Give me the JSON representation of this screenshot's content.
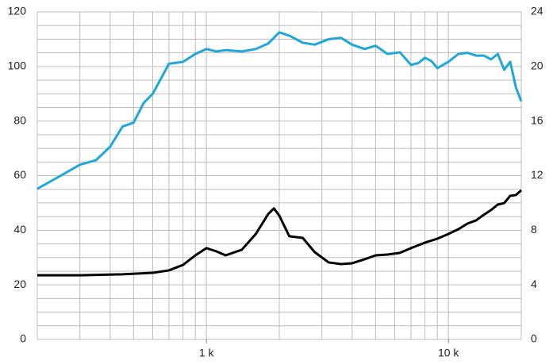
{
  "chart_data": {
    "type": "line",
    "xscale": "log",
    "xlim": [
      200,
      20000
    ],
    "xticks": [
      {
        "value": 1000,
        "label": "1 k"
      },
      {
        "value": 10000,
        "label": "10 k"
      }
    ],
    "x_grid": [
      200,
      300,
      400,
      500,
      600,
      700,
      800,
      900,
      1000,
      2000,
      3000,
      4000,
      5000,
      6000,
      7000,
      8000,
      9000,
      10000,
      20000
    ],
    "ylim": [
      0,
      120
    ],
    "yticks": [
      0,
      20,
      40,
      60,
      80,
      100,
      120
    ],
    "y_grid": [
      0,
      5,
      10,
      15,
      20,
      25,
      30,
      35,
      40,
      45,
      50,
      55,
      60,
      65,
      70,
      75,
      80,
      85,
      90,
      95,
      100,
      105,
      110,
      115,
      120
    ],
    "y2lim": [
      0,
      24
    ],
    "y2ticks": [
      0,
      4,
      8,
      12,
      16,
      20,
      24
    ],
    "grid": true,
    "series": [
      {
        "color": "#1ea7d8",
        "x": [
          200,
          250,
          300,
          350,
          400,
          450,
          500,
          550,
          600,
          700,
          800,
          900,
          1000,
          1100,
          1200,
          1400,
          1600,
          1800,
          2000,
          2200,
          2500,
          2800,
          3200,
          3600,
          4000,
          4500,
          5000,
          5600,
          6300,
          7000,
          7500,
          8000,
          8500,
          9000,
          10000,
          11000,
          12000,
          13000,
          14000,
          15000,
          16000,
          17000,
          18000,
          19000,
          20000
        ],
        "values": [
          55.2,
          60,
          64,
          65.7,
          70.6,
          78,
          79.4,
          86.6,
          90,
          101,
          101.7,
          104.6,
          106.4,
          105.5,
          106,
          105.5,
          106.4,
          108.4,
          112.5,
          111.3,
          108.7,
          108,
          110,
          110.5,
          108,
          106.4,
          107.6,
          104.6,
          105.2,
          100.6,
          101.2,
          103.2,
          102,
          99.4,
          101.7,
          104.6,
          105,
          104,
          104,
          102.6,
          104.6,
          98.8,
          101.7,
          92.4,
          87.2
        ]
      },
      {
        "color": "#000000",
        "axis": "y2",
        "x": [
          200,
          300,
          450,
          600,
          700,
          800,
          900,
          1000,
          1100,
          1200,
          1400,
          1600,
          1800,
          1900,
          2000,
          2200,
          2500,
          2800,
          3200,
          3600,
          4000,
          4500,
          5000,
          5600,
          6300,
          7000,
          8000,
          9000,
          10000,
          11000,
          12000,
          13000,
          14000,
          15000,
          16000,
          17000,
          18000,
          19000,
          20000
        ],
        "values": [
          4.7,
          4.7,
          4.77,
          4.88,
          5.06,
          5.46,
          6.16,
          6.69,
          6.45,
          6.16,
          6.57,
          7.73,
          9.19,
          9.6,
          9.07,
          7.56,
          7.44,
          6.4,
          5.64,
          5.52,
          5.58,
          5.87,
          6.16,
          6.22,
          6.34,
          6.69,
          7.09,
          7.38,
          7.73,
          8.08,
          8.49,
          8.72,
          9.13,
          9.48,
          9.88,
          9.99,
          10.52,
          10.58,
          10.93
        ]
      }
    ]
  }
}
